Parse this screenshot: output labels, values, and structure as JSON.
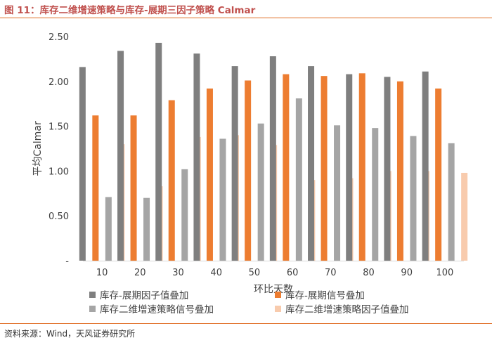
{
  "header": {
    "title": "图 11：库存二维增速策略与库存-展期三因子策略 Calmar"
  },
  "footer": {
    "source": "资料来源：Wind，天风证券研究所"
  },
  "chart_data": {
    "type": "bar",
    "title": "",
    "xlabel": "环比天数",
    "ylabel": "平均Calmar",
    "categories": [
      "10",
      "20",
      "30",
      "40",
      "50",
      "60",
      "70",
      "80",
      "90",
      "100"
    ],
    "ylim": [
      0,
      2.5
    ],
    "yticks": [
      "-",
      "0.50",
      "1.00",
      "1.50",
      "2.00",
      "2.50"
    ],
    "grid": false,
    "legend_position": "bottom",
    "series": [
      {
        "name": "库存-展期因子值叠加",
        "color": "#7f7f7f",
        "values": [
          2.16,
          2.34,
          2.43,
          2.31,
          2.17,
          2.28,
          2.17,
          2.08,
          2.05,
          2.11
        ]
      },
      {
        "name": "库存-展期信号叠加",
        "color": "#ed7d31",
        "values": [
          1.62,
          1.62,
          1.79,
          1.92,
          2.01,
          2.08,
          2.06,
          2.09,
          2.0,
          1.92
        ]
      },
      {
        "name": "库存二维增速策略信号叠加",
        "color": "#a5a5a5",
        "values": [
          0.71,
          0.7,
          1.02,
          1.36,
          1.53,
          1.81,
          1.51,
          1.48,
          1.39,
          1.31
        ]
      },
      {
        "name": "库存二维增速策略因子值叠加",
        "color": "#f8cbad",
        "values": [
          1.3,
          0.83,
          1.38,
          1.4,
          1.29,
          0.9,
          0.92,
          1.0,
          1.0,
          0.98
        ]
      }
    ]
  }
}
